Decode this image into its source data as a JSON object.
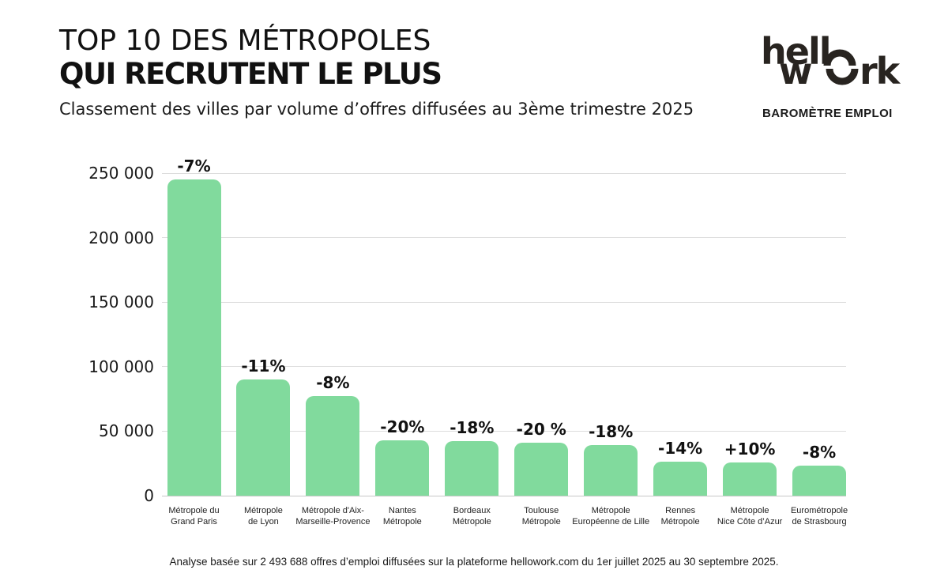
{
  "header": {
    "title_line1": "TOP 10 DES MÉTROPOLES",
    "title_line2": "QUI RECRUTENT LE PLUS",
    "subtitle": "Classement des villes par volume d’offres diffusées au 3ème trimestre 2025"
  },
  "logo": {
    "line1": "hell",
    "line2_left": "w",
    "line2_right": "rk",
    "tagline": "BAROMÈTRE EMPLOI"
  },
  "chart_data": {
    "type": "bar",
    "title": "Top 10 des métropoles qui recrutent le plus",
    "categories": [
      [
        "Métropole du",
        "Grand Paris"
      ],
      [
        "Métropole",
        "de Lyon"
      ],
      [
        "Métropole d'Aix-",
        "Marseille-Provence"
      ],
      [
        "Nantes",
        "Métropole"
      ],
      [
        "Bordeaux",
        "Métropole"
      ],
      [
        "Toulouse",
        "Métropole"
      ],
      [
        "Métropole",
        "Européenne de Lille"
      ],
      [
        "Rennes",
        "Métropole"
      ],
      [
        "Métropole",
        "Nice Côte d’Azur"
      ],
      [
        "Eurométropole",
        "de Strasbourg"
      ]
    ],
    "values": [
      245000,
      90000,
      77500,
      43000,
      42000,
      41000,
      39000,
      26500,
      26000,
      23500
    ],
    "bar_labels": [
      "-7%",
      "-11%",
      "-8%",
      "-20%",
      "-18%",
      "-20 %",
      "-18%",
      "-14%",
      "+10%",
      "-8%"
    ],
    "xlabel": "",
    "ylabel": "",
    "ylim": [
      0,
      250000
    ],
    "yticks": [
      0,
      50000,
      100000,
      150000,
      200000,
      250000
    ],
    "ytick_labels": [
      "0",
      "50 000",
      "100 000",
      "150 000",
      "200 000",
      "250 000"
    ],
    "grid": true,
    "legend": "none",
    "bar_color": "#81DA9D",
    "gridline_color": "#dcdcdc"
  },
  "footer": {
    "note": "Analyse basée sur 2 493 688 offres d’emploi diffusées sur la plateforme hellowork.com du 1er juillet 2025 au 30 septembre 2025."
  }
}
